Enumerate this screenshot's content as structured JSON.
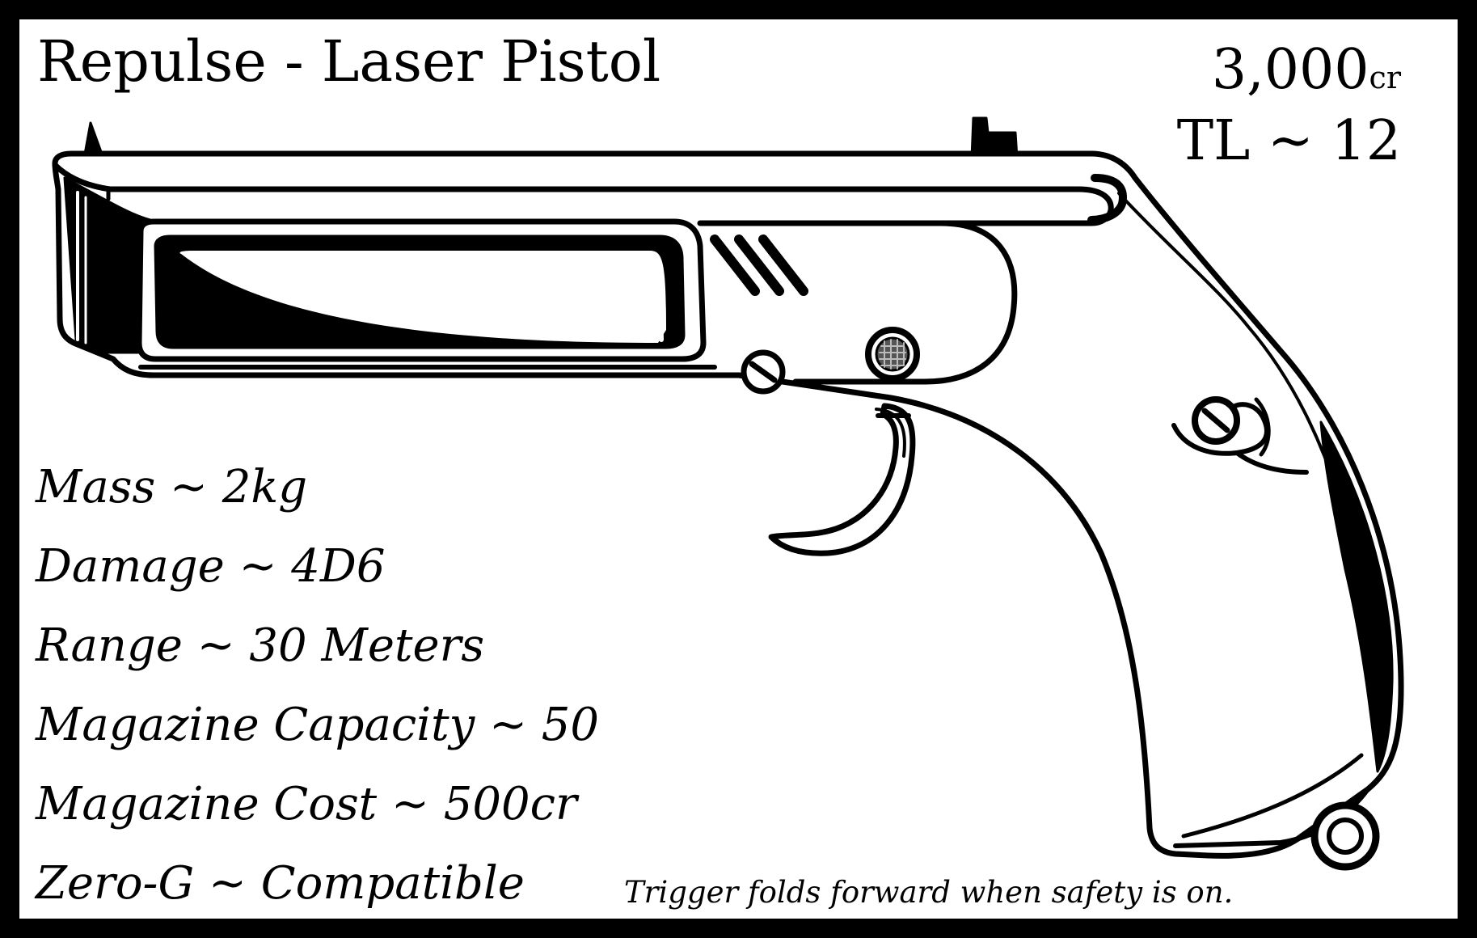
{
  "card": {
    "title": "Repulse - Laser Pistol",
    "price_value": "3,000",
    "price_unit": "cr",
    "tech_level": "TL ~ 12",
    "stats": [
      {
        "label": "Mass",
        "sep": " ~ ",
        "value": "2kg"
      },
      {
        "label": "Damage",
        "sep": " ~ ",
        "value": "4D6"
      },
      {
        "label": "Range",
        "sep": " ~ ",
        "value": "30 Meters"
      },
      {
        "label": "Magazine Capacity",
        "sep": " ~ ",
        "value": "50"
      },
      {
        "label": "Magazine Cost",
        "sep": " ~ ",
        "value": "500cr"
      },
      {
        "label": "Zero-G",
        "sep": " ~ ",
        "value": "Compatible"
      }
    ],
    "note": "Trigger folds forward when safety is on."
  },
  "illustration": {
    "icon": "laser-pistol-icon",
    "ink_color": "#000000",
    "paper_color": "#ffffff"
  }
}
